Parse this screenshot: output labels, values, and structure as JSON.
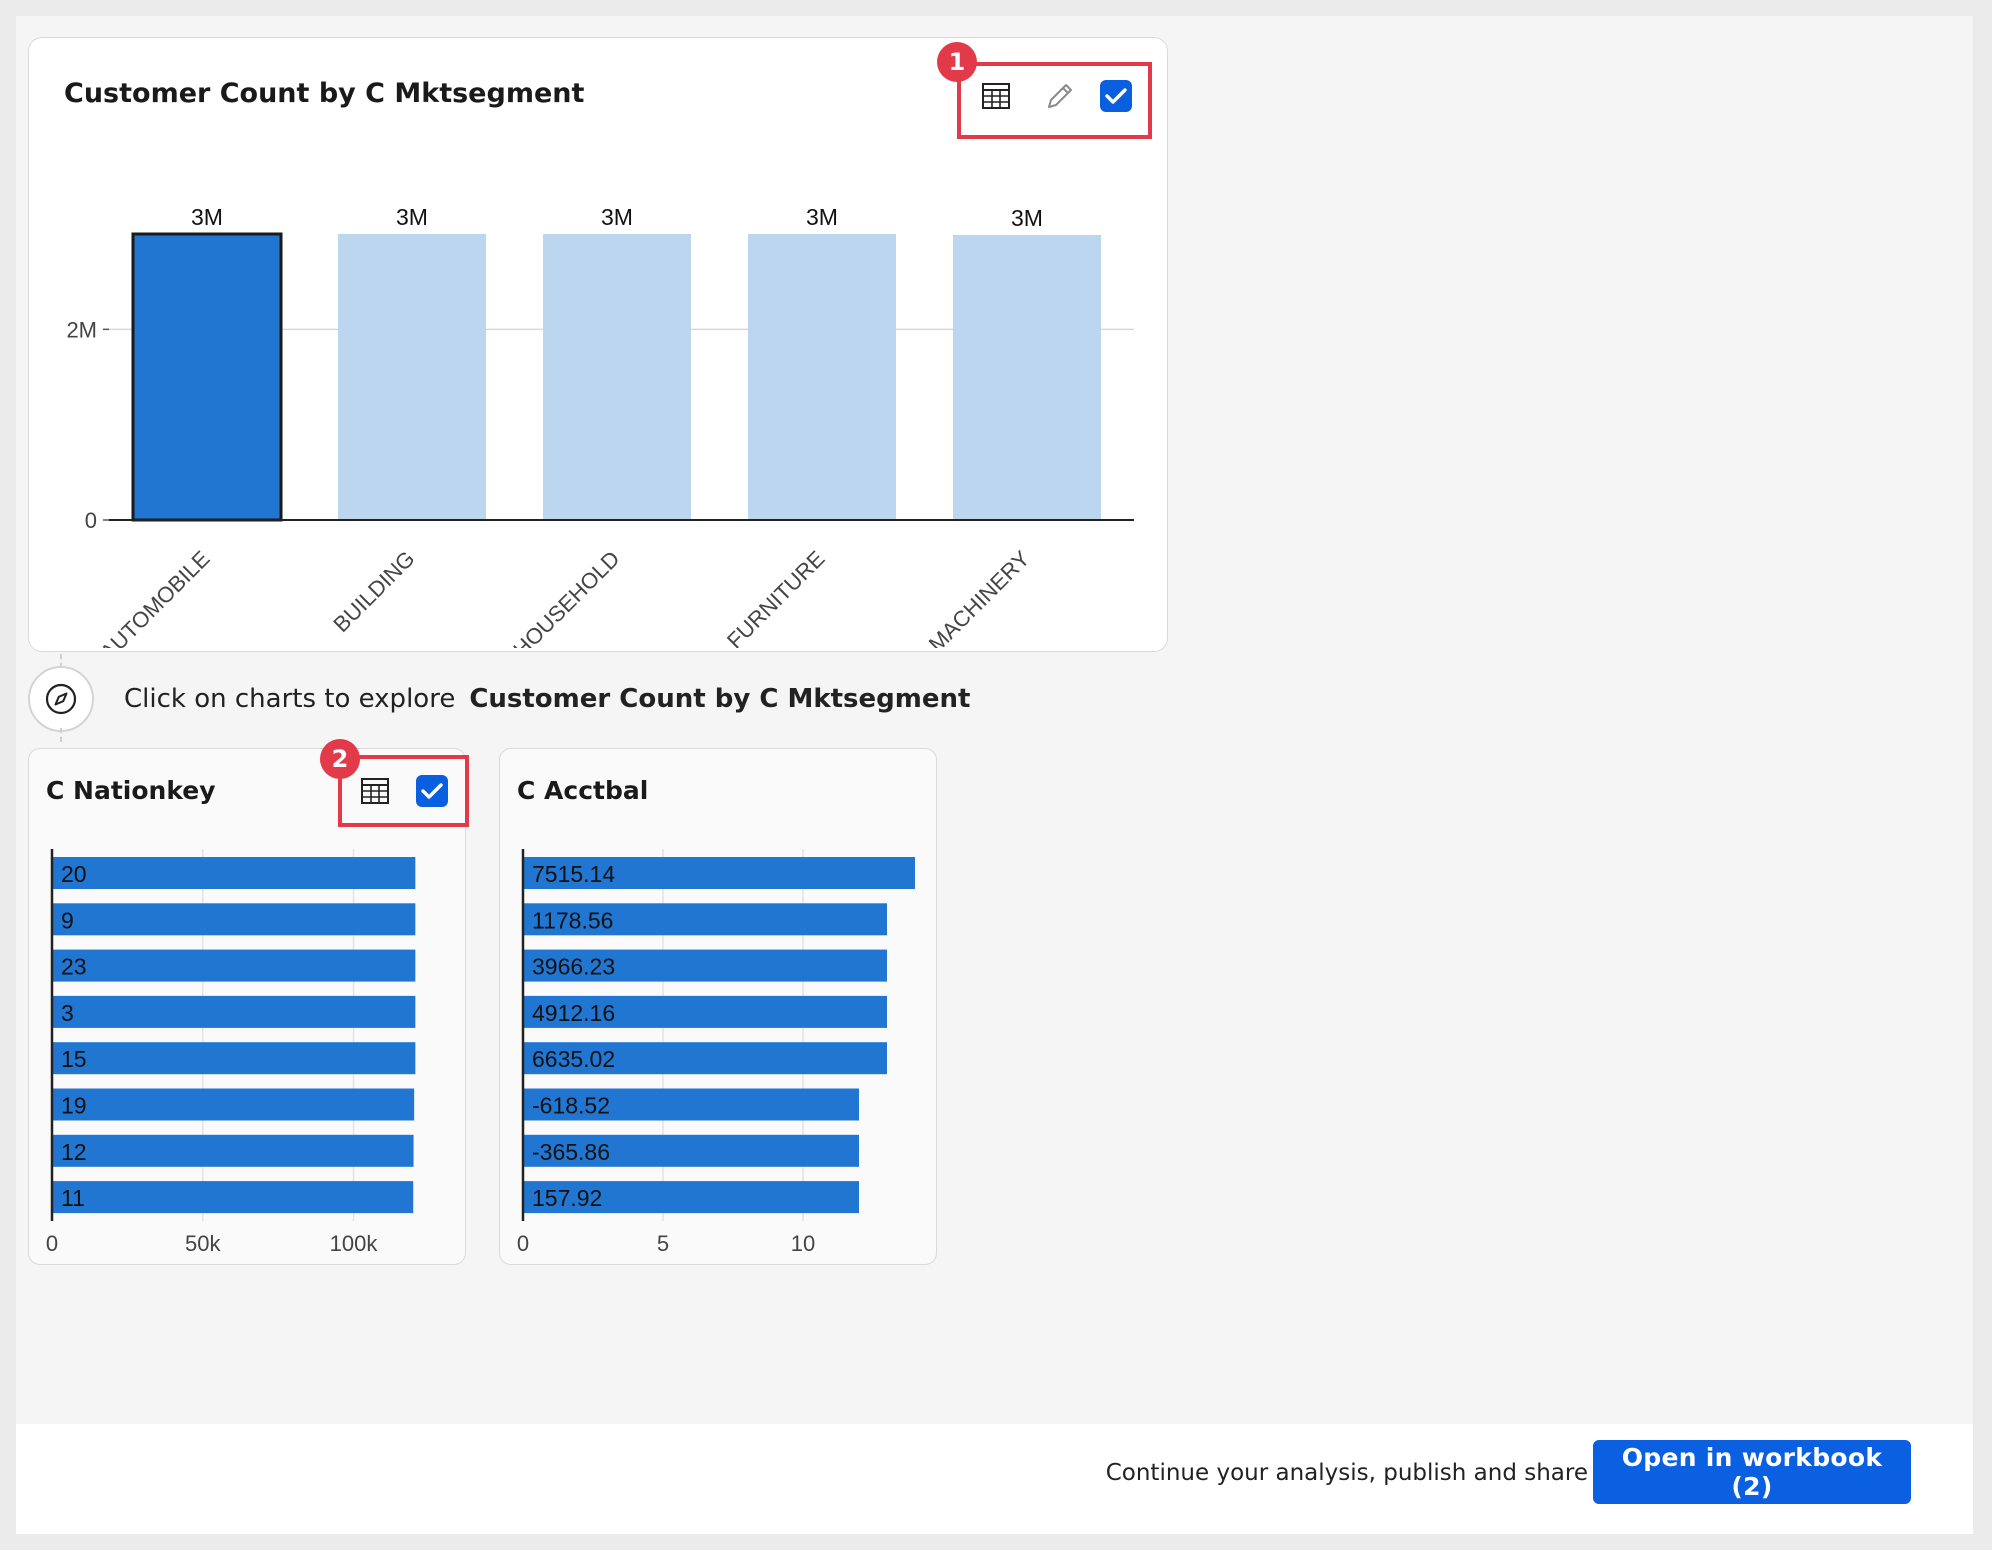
{
  "main_chart": {
    "title": "Customer Count by C Mktsegment",
    "badge": "1"
  },
  "explore": {
    "prefix": "Click on charts to explore",
    "target": "Customer Count by C Mktsegment"
  },
  "nationkey_card": {
    "title": "C Nationkey",
    "badge": "2"
  },
  "acctbal_card": {
    "title": "C Acctbal"
  },
  "footer": {
    "text": "Continue your analysis, publish and share",
    "button_label": "Open in workbook (2)"
  },
  "colors": {
    "selected_bar": "#2176d2",
    "unselected_bar": "#bcd6f0",
    "bar_blue": "#2176d2",
    "highlight_red": "#e23a48",
    "button_blue": "#0a60e0"
  },
  "chart_data": [
    {
      "type": "bar",
      "title": "Customer Count by C Mktsegment",
      "categories": [
        "AUTOMOBILE",
        "BUILDING",
        "HOUSEHOLD",
        "FURNITURE",
        "MACHINERY"
      ],
      "values": [
        3000000,
        3000000,
        3000000,
        3000000,
        2990000
      ],
      "data_labels": [
        "3M",
        "3M",
        "3M",
        "3M",
        "3M"
      ],
      "selected_index": 0,
      "yticks": [
        0,
        2000000
      ],
      "ytick_labels": [
        "0",
        "2M"
      ],
      "ylim": [
        0,
        3000000
      ],
      "grid": true
    },
    {
      "type": "bar",
      "orientation": "horizontal",
      "title": "C Nationkey",
      "categories": [
        "20",
        "9",
        "23",
        "3",
        "15",
        "19",
        "12",
        "11"
      ],
      "values": [
        120500,
        120500,
        120500,
        120500,
        120500,
        120100,
        119900,
        119800
      ],
      "xticks": [
        0,
        50000,
        100000
      ],
      "xtick_labels": [
        "0",
        "50k",
        "100k"
      ],
      "xlim": [
        0,
        130000
      ]
    },
    {
      "type": "bar",
      "orientation": "horizontal",
      "title": "C Acctbal",
      "categories": [
        "7515.14",
        "1178.56",
        "3966.23",
        "4912.16",
        "6635.02",
        "-618.52",
        "-365.86",
        "157.92"
      ],
      "values": [
        14,
        13,
        13,
        13,
        13,
        12,
        12,
        12
      ],
      "xticks": [
        0,
        5,
        10
      ],
      "xtick_labels": [
        "0",
        "5",
        "10"
      ],
      "xlim": [
        0,
        14
      ]
    }
  ]
}
